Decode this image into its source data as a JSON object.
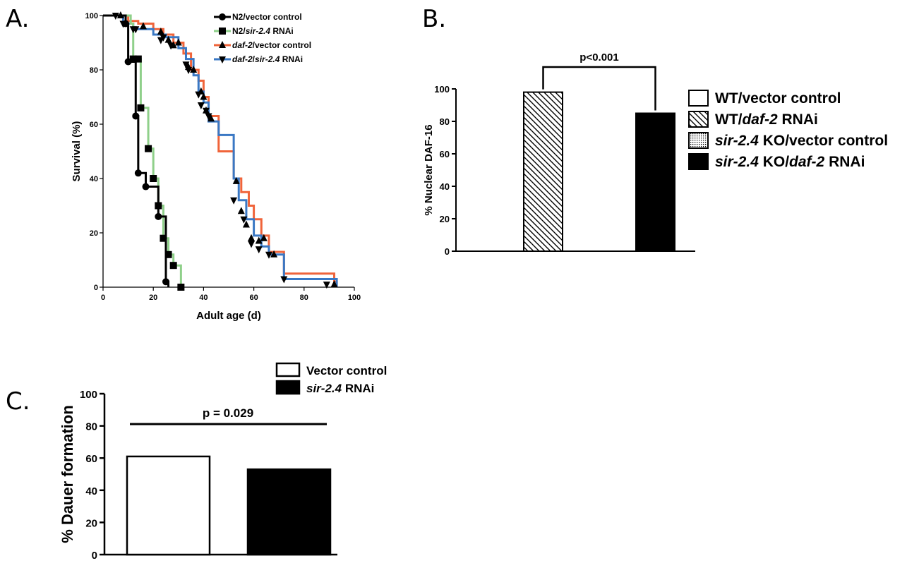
{
  "colors": {
    "axis": "#000000",
    "n2_vector": "#000000",
    "n2_sir24": "#8fd08a",
    "daf2_vector": "#f0643a",
    "daf2_sir24": "#3a78c4"
  },
  "panel_labels": {
    "a": "A.",
    "b": "B.",
    "c": "C."
  },
  "chart_data": [
    {
      "id": "A",
      "type": "line",
      "subtype": "kaplan-meier step survival curves",
      "xlabel": "Adult age (d)",
      "ylabel": "Survival (%)",
      "xlim": [
        0,
        100
      ],
      "ylim": [
        0,
        100
      ],
      "xticks": [
        0,
        20,
        40,
        60,
        80,
        100
      ],
      "yticks": [
        0,
        20,
        40,
        60,
        80,
        100
      ],
      "legend_position": "top-right",
      "series": [
        {
          "name": "N2/vector control",
          "legend_parts": [
            "N2/vector control"
          ],
          "color_key": "n2_vector",
          "marker": "circle",
          "steps": [
            [
              0,
              100
            ],
            [
              9,
              97
            ],
            [
              10,
              83
            ],
            [
              13,
              63
            ],
            [
              14,
              42
            ],
            [
              17,
              37
            ],
            [
              22,
              26
            ],
            [
              25,
              2
            ],
            [
              26,
              0
            ]
          ],
          "markers": [
            [
              9,
              97
            ],
            [
              10,
              83
            ],
            [
              13,
              63
            ],
            [
              14,
              42
            ],
            [
              17,
              37
            ],
            [
              22,
              26
            ],
            [
              25,
              2
            ]
          ]
        },
        {
          "name": "N2/sir-2.4 RNAi",
          "legend_parts": [
            "N2/",
            "sir-2.4",
            " RNAi"
          ],
          "color_key": "n2_sir24",
          "marker": "square",
          "steps": [
            [
              0,
              100
            ],
            [
              11,
              97
            ],
            [
              12,
              84
            ],
            [
              15,
              66
            ],
            [
              18,
              51
            ],
            [
              20,
              40
            ],
            [
              22,
              30
            ],
            [
              24,
              18
            ],
            [
              26,
              12
            ],
            [
              28,
              8
            ],
            [
              31,
              0
            ]
          ],
          "markers": [
            [
              12,
              84
            ],
            [
              14,
              84
            ],
            [
              15,
              66
            ],
            [
              18,
              51
            ],
            [
              20,
              40
            ],
            [
              22,
              30
            ],
            [
              24,
              18
            ],
            [
              26,
              12
            ],
            [
              28,
              8
            ],
            [
              31,
              0
            ]
          ]
        },
        {
          "name": "daf-2/vector control",
          "legend_parts": [
            "daf-2",
            "/vector control"
          ],
          "color_key": "daf2_vector",
          "marker": "triangle-up",
          "steps": [
            [
              0,
              100
            ],
            [
              10,
              98
            ],
            [
              14,
              97
            ],
            [
              20,
              95
            ],
            [
              24,
              93
            ],
            [
              28,
              90
            ],
            [
              32,
              86
            ],
            [
              35,
              80
            ],
            [
              38,
              76
            ],
            [
              40,
              70
            ],
            [
              42,
              63
            ],
            [
              46,
              50
            ],
            [
              52,
              40
            ],
            [
              55,
              35
            ],
            [
              58,
              30
            ],
            [
              60,
              25
            ],
            [
              63,
              19
            ],
            [
              66,
              13
            ],
            [
              72,
              5
            ],
            [
              90,
              5
            ],
            [
              92,
              2
            ],
            [
              93,
              0
            ]
          ],
          "markers": [
            [
              7,
              100
            ],
            [
              16,
              96
            ],
            [
              23,
              94
            ],
            [
              26,
              91
            ],
            [
              28,
              89
            ],
            [
              30,
              90
            ],
            [
              34,
              81
            ],
            [
              36,
              80
            ],
            [
              39,
              72
            ],
            [
              40,
              70
            ],
            [
              41,
              65
            ],
            [
              43,
              62
            ],
            [
              53,
              39
            ],
            [
              55,
              28
            ],
            [
              57,
              23
            ],
            [
              59,
              18
            ],
            [
              62,
              17
            ],
            [
              64,
              18
            ],
            [
              68,
              12
            ],
            [
              92,
              1
            ]
          ]
        },
        {
          "name": "daf-2/sir-2.4 RNAi",
          "legend_parts": [
            "daf-2",
            "/",
            "sir-2.4",
            " RNAi"
          ],
          "color_key": "daf2_sir24",
          "marker": "triangle-down",
          "steps": [
            [
              0,
              100
            ],
            [
              8,
              97
            ],
            [
              12,
              95
            ],
            [
              20,
              93
            ],
            [
              25,
              92
            ],
            [
              30,
              88
            ],
            [
              33,
              84
            ],
            [
              36,
              78
            ],
            [
              38,
              72
            ],
            [
              40,
              68
            ],
            [
              42,
              61
            ],
            [
              46,
              56
            ],
            [
              51,
              56
            ],
            [
              52,
              40
            ],
            [
              54,
              32
            ],
            [
              57,
              25
            ],
            [
              60,
              19
            ],
            [
              63,
              15
            ],
            [
              66,
              12
            ],
            [
              72,
              3
            ],
            [
              90,
              3
            ],
            [
              93,
              0
            ]
          ],
          "markers": [
            [
              5,
              100
            ],
            [
              8,
              97
            ],
            [
              12,
              95
            ],
            [
              13,
              95
            ],
            [
              23,
              91
            ],
            [
              24,
              92
            ],
            [
              27,
              89
            ],
            [
              33,
              82
            ],
            [
              34,
              80
            ],
            [
              38,
              71
            ],
            [
              39,
              67
            ],
            [
              41,
              65
            ],
            [
              42,
              63
            ],
            [
              52,
              32
            ],
            [
              56,
              25
            ],
            [
              59,
              16
            ],
            [
              62,
              14
            ],
            [
              66,
              12
            ],
            [
              72,
              3
            ],
            [
              89,
              1
            ]
          ]
        }
      ]
    },
    {
      "id": "B",
      "type": "bar",
      "ylabel": "% Nuclear DAF-16",
      "ylim": [
        0,
        100
      ],
      "yticks": [
        0,
        20,
        40,
        60,
        80,
        100
      ],
      "legend_position": "right",
      "legend_entries": [
        {
          "parts": [
            "WT/vector control"
          ],
          "italic": [
            false
          ],
          "fill": "white"
        },
        {
          "parts": [
            "WT/",
            "daf-2",
            " RNAi"
          ],
          "italic": [
            false,
            true,
            false
          ],
          "fill": "hatch"
        },
        {
          "parts": [
            "sir-2.4",
            " KO/vector control"
          ],
          "italic": [
            true,
            false
          ],
          "fill": "dots"
        },
        {
          "parts": [
            "sir-2.4",
            " KO/",
            "daf-2",
            " RNAi"
          ],
          "italic": [
            true,
            false,
            true,
            false
          ],
          "fill": "black"
        }
      ],
      "bars": [
        {
          "label": "WT/daf-2 RNAi",
          "value": 98,
          "fill": "hatch"
        },
        {
          "label": "sir-2.4 KO/daf-2 RNAi",
          "value": 85,
          "fill": "black"
        }
      ],
      "annotation": "p<0.001"
    },
    {
      "id": "C",
      "type": "bar",
      "ylabel": "% Dauer formation",
      "ylim": [
        0,
        100
      ],
      "yticks": [
        0,
        20,
        40,
        60,
        80,
        100
      ],
      "legend_position": "top",
      "legend_entries": [
        {
          "parts": [
            "Vector control"
          ],
          "italic": [
            false
          ],
          "fill": "white"
        },
        {
          "parts": [
            "sir-2.4",
            " RNAi"
          ],
          "italic": [
            true,
            false
          ],
          "fill": "black"
        }
      ],
      "bars": [
        {
          "label": "Vector control",
          "value": 61,
          "fill": "white"
        },
        {
          "label": "sir-2.4 RNAi",
          "value": 53,
          "fill": "black"
        }
      ],
      "annotation": "p = 0.029"
    }
  ]
}
